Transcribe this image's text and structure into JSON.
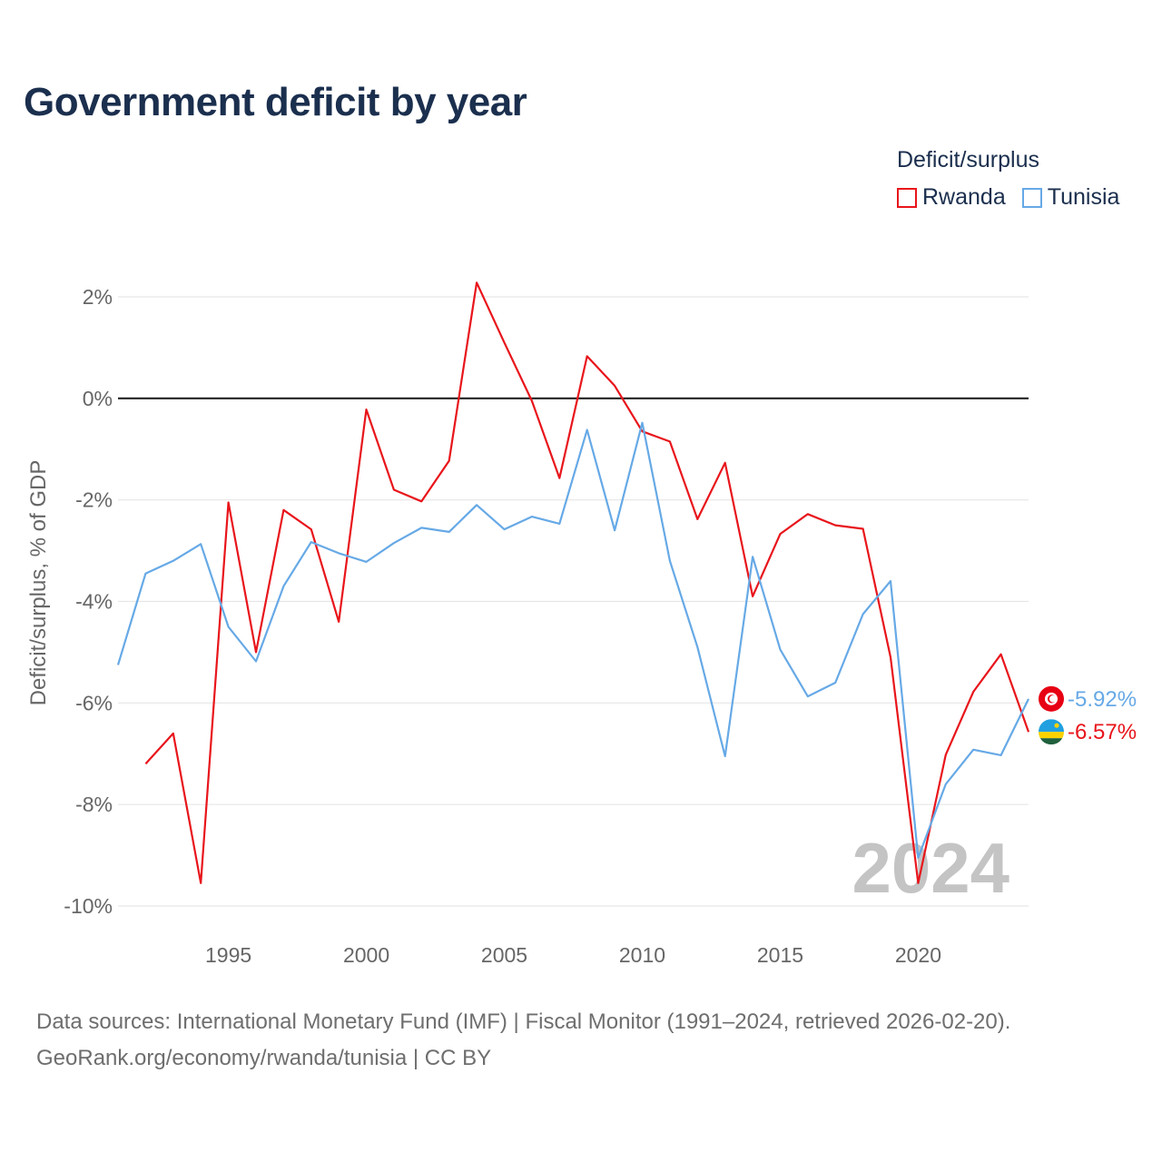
{
  "title": "Government deficit by year",
  "legend": {
    "title": "Deficit/surplus",
    "items": [
      {
        "name": "Rwanda",
        "color": "#e8151b"
      },
      {
        "name": "Tunisia",
        "color": "#66a9e6"
      }
    ]
  },
  "footer": {
    "line1": "Data sources: International Monetary Fund (IMF) | Fiscal Monitor (1991–2024, retrieved 2026-02-20).",
    "line2": "GeoRank.org/economy/rwanda/tunisia | CC BY"
  },
  "chart_data": {
    "type": "line",
    "title": "Government deficit by year",
    "xlabel": "",
    "ylabel": "Deficit/surplus, % of GDP",
    "xlim": [
      1991,
      2024
    ],
    "ylim": [
      -10,
      2
    ],
    "yticks": [
      2,
      0,
      -2,
      -4,
      -6,
      -8,
      -10
    ],
    "ytick_labels": [
      "2%",
      "0%",
      "-2%",
      "-4%",
      "-6%",
      "-8%",
      "-10%"
    ],
    "xticks": [
      1995,
      2000,
      2005,
      2010,
      2015,
      2020
    ],
    "xtick_labels": [
      "1995",
      "2000",
      "2005",
      "2010",
      "2015",
      "2020"
    ],
    "zero_line": true,
    "grid": true,
    "current_year": "2024",
    "series": [
      {
        "name": "Rwanda",
        "color": "#e8151b",
        "end_label": "-6.57%",
        "flag": "rwanda",
        "x": [
          1992,
          1993,
          1994,
          1995,
          1996,
          1997,
          1998,
          1999,
          2000,
          2001,
          2002,
          2003,
          2004,
          2005,
          2006,
          2007,
          2008,
          2009,
          2010,
          2011,
          2012,
          2013,
          2014,
          2015,
          2016,
          2017,
          2018,
          2019,
          2020,
          2021,
          2022,
          2023,
          2024
        ],
        "values": [
          -7.2,
          -6.6,
          -9.55,
          -2.05,
          -5.0,
          -2.2,
          -2.58,
          -4.4,
          -0.22,
          -1.8,
          -2.03,
          -1.23,
          2.28,
          1.1,
          -0.05,
          -1.57,
          0.83,
          0.25,
          -0.65,
          -0.85,
          -2.38,
          -1.27,
          -3.9,
          -2.67,
          -2.28,
          -2.5,
          -2.57,
          -5.1,
          -9.55,
          -7.02,
          -5.78,
          -5.04,
          -6.57
        ]
      },
      {
        "name": "Tunisia",
        "color": "#66a9e6",
        "end_label": "-5.92%",
        "flag": "tunisia",
        "x": [
          1991,
          1992,
          1993,
          1994,
          1995,
          1996,
          1997,
          1998,
          1999,
          2000,
          2001,
          2002,
          2003,
          2004,
          2005,
          2006,
          2007,
          2008,
          2009,
          2010,
          2011,
          2012,
          2013,
          2014,
          2015,
          2016,
          2017,
          2018,
          2019,
          2020,
          2021,
          2022,
          2023,
          2024
        ],
        "values": [
          -5.25,
          -3.45,
          -3.2,
          -2.87,
          -4.5,
          -5.18,
          -3.7,
          -2.83,
          -3.05,
          -3.22,
          -2.85,
          -2.55,
          -2.63,
          -2.1,
          -2.58,
          -2.33,
          -2.47,
          -0.62,
          -2.6,
          -0.48,
          -3.2,
          -4.9,
          -7.05,
          -3.12,
          -4.95,
          -5.87,
          -5.6,
          -4.25,
          -3.6,
          -9.05,
          -7.6,
          -6.92,
          -7.03,
          -5.92
        ]
      }
    ]
  }
}
